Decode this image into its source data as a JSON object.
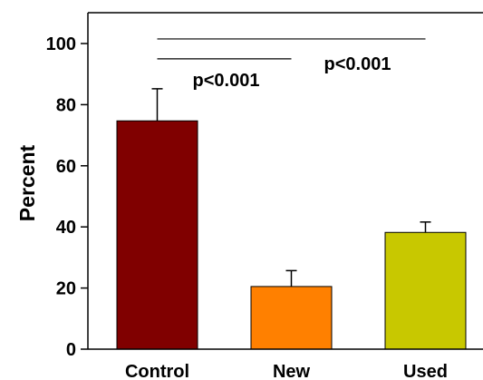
{
  "chart_data": {
    "type": "bar",
    "title": "",
    "xlabel": "",
    "ylabel": "Percent",
    "ylim": [
      0,
      110
    ],
    "yticks": [
      0,
      20,
      40,
      60,
      80,
      100
    ],
    "ytick_labels": [
      "0",
      "20",
      "40",
      "60",
      "80",
      "100"
    ],
    "categories": [
      "Control",
      "New",
      "Used"
    ],
    "values": [
      74.7,
      20.5,
      38.2
    ],
    "errors": [
      10.5,
      5.2,
      3.4
    ],
    "colors": [
      "#800000",
      "#ff8000",
      "#c8c800"
    ],
    "grid": false,
    "annotations": [
      {
        "label": "p<0.001",
        "from": "Control",
        "to": "New",
        "y": 95
      },
      {
        "label": "p<0.001",
        "from": "Control",
        "to": "Used",
        "y": 101.5
      }
    ]
  }
}
